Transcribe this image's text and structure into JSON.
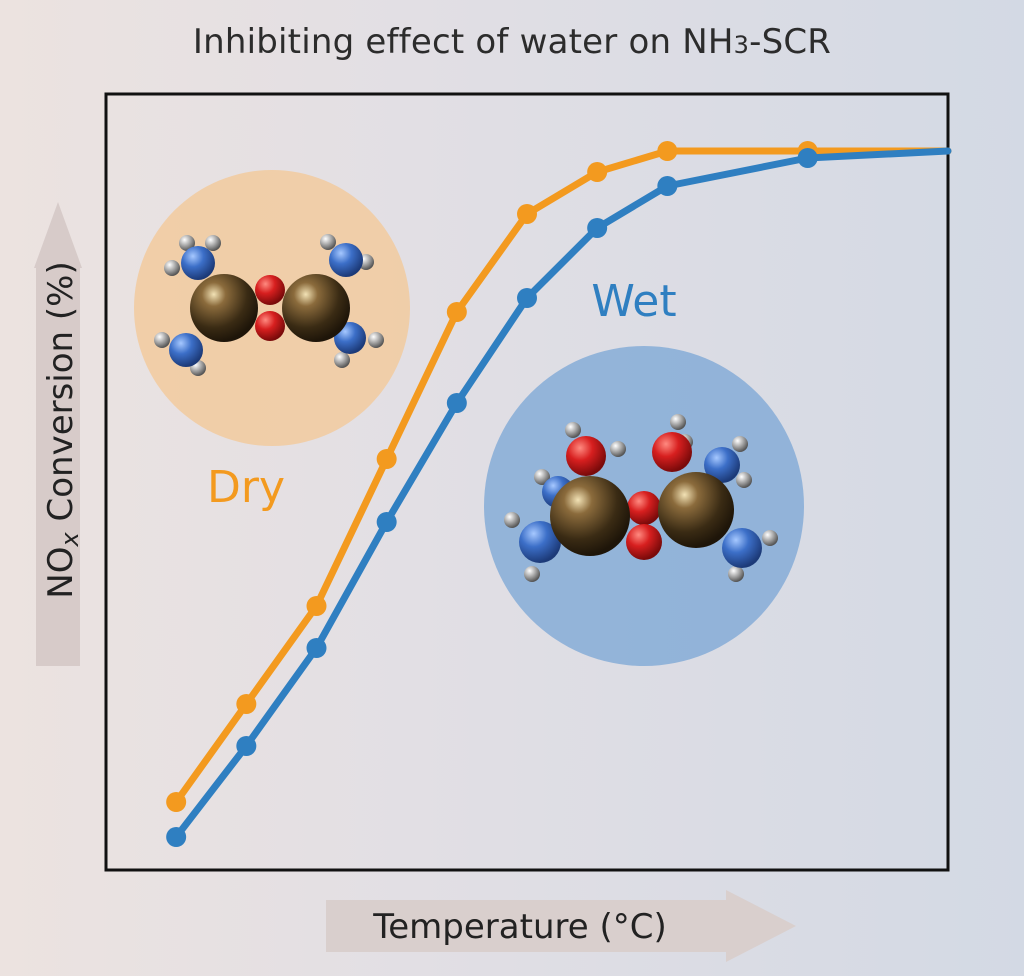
{
  "chart_data": {
    "type": "line",
    "title": "Inhibiting effect of water on NH3-SCR",
    "xlabel": "Temperature (°C)",
    "ylabel": "NOx Conversion (%)",
    "x_ticks_shown": false,
    "y_ticks_shown": false,
    "grid": false,
    "xlim": [
      0,
      12
    ],
    "ylim": [
      0,
      100
    ],
    "x": [
      1,
      2,
      3,
      4,
      5,
      6,
      7,
      8,
      10,
      12
    ],
    "series": [
      {
        "name": "Dry",
        "color": "#f39a1f",
        "values": [
          4,
          18,
          32,
          53,
          74,
          88,
          94,
          97,
          97,
          97
        ],
        "marker_count": 9
      },
      {
        "name": "Wet",
        "color": "#2f7fc1",
        "values": [
          -1,
          12,
          26,
          44,
          61,
          76,
          86,
          92,
          96,
          97
        ],
        "marker_count": 9
      }
    ],
    "annotations": [
      {
        "label": "Dry",
        "color": "#f39a1f",
        "image": "dry-molecule"
      },
      {
        "label": "Wet",
        "color": "#2f7fc1",
        "image": "wet-molecule"
      }
    ]
  },
  "colors": {
    "dry": "#f39a1f",
    "wet": "#2f7fc1",
    "frame": "#111111",
    "arrow": "#d9ccca"
  }
}
